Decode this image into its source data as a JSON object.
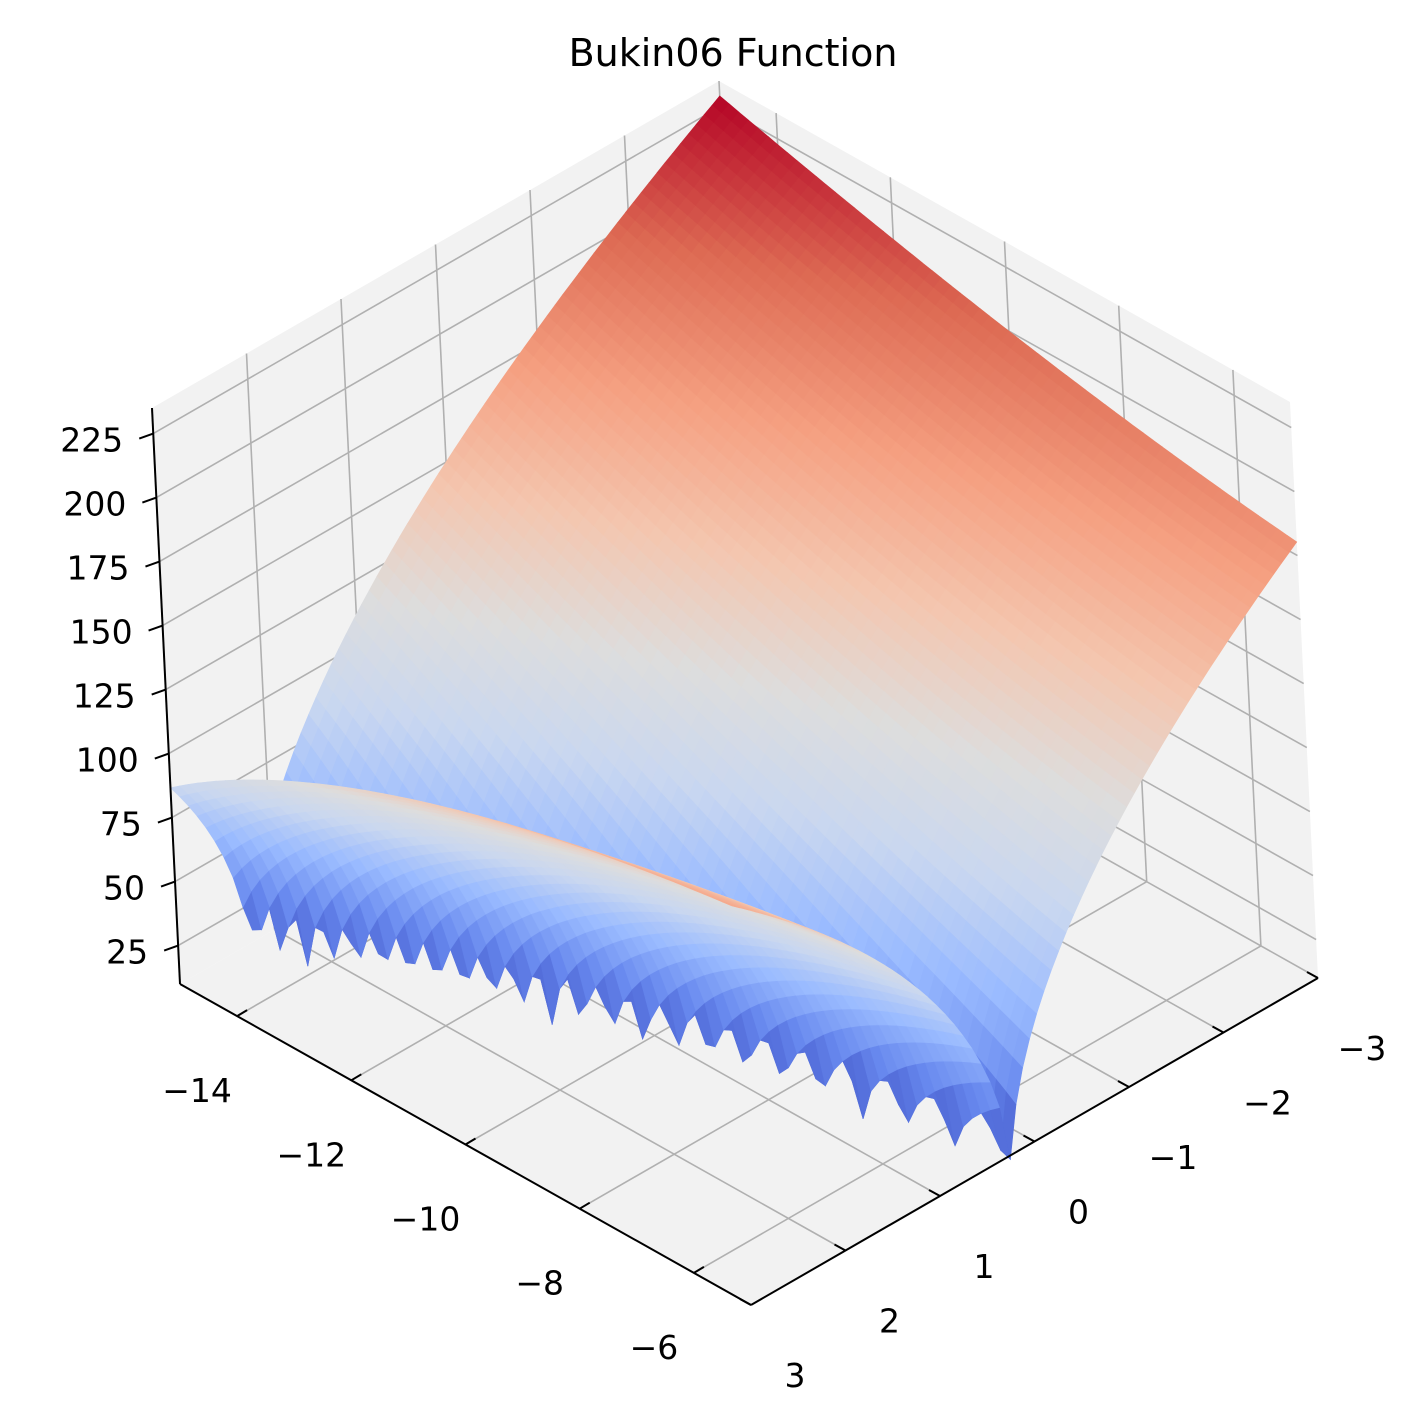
{
  "chart_data": {
    "type": "surface",
    "title": "Bukin06 Function",
    "xlabel": "",
    "ylabel": "",
    "zlabel": "",
    "colormap": "coolwarm",
    "colormap_stops": [
      "#3b4cc0",
      "#6788ee",
      "#9abbff",
      "#c9d7f0",
      "#dddddd",
      "#f4c6af",
      "#f59f80",
      "#dd6a53",
      "#b40426"
    ],
    "function": "f(x, y) = 100*sqrt(|y - 0.01*x^2|) + 0.01*|x + 10|",
    "x_range": [
      -15,
      -5
    ],
    "y_range": [
      -3,
      3
    ],
    "zlim": [
      10,
      235
    ],
    "grid": true,
    "x_ticks": [
      {
        "value": -14,
        "label": "−14"
      },
      {
        "value": -12,
        "label": "−12"
      },
      {
        "value": -10,
        "label": "−10"
      },
      {
        "value": -8,
        "label": "−8"
      },
      {
        "value": -6,
        "label": "−6"
      }
    ],
    "y_ticks": [
      {
        "value": -3,
        "label": "−3"
      },
      {
        "value": -2,
        "label": "−2"
      },
      {
        "value": -1,
        "label": "−1"
      },
      {
        "value": 0,
        "label": "0"
      },
      {
        "value": 1,
        "label": "1"
      },
      {
        "value": 2,
        "label": "2"
      },
      {
        "value": 3,
        "label": "3"
      }
    ],
    "z_ticks": [
      {
        "value": 25,
        "label": "25"
      },
      {
        "value": 50,
        "label": "50"
      },
      {
        "value": 75,
        "label": "75"
      },
      {
        "value": 100,
        "label": "100"
      },
      {
        "value": 125,
        "label": "125"
      },
      {
        "value": 150,
        "label": "150"
      },
      {
        "value": 175,
        "label": "175"
      },
      {
        "value": 200,
        "label": "200"
      },
      {
        "value": 225,
        "label": "225"
      }
    ],
    "colors": {
      "pane": "#f2f2f2",
      "grid": "#b0b0b0",
      "axis": "#000000"
    }
  }
}
